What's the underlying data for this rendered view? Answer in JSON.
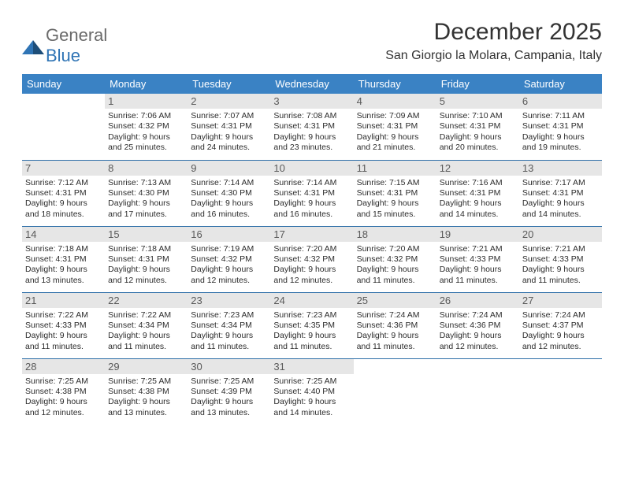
{
  "brand": {
    "word1": "General",
    "word2": "Blue"
  },
  "title": "December 2025",
  "location": "San Giorgio la Molara, Campania, Italy",
  "colors": {
    "header_bg": "#3a82c4",
    "header_text": "#ffffff",
    "daynum_bg": "#e6e6e6",
    "daynum_text": "#5a5a5a",
    "rule": "#2f6fa8",
    "body_text": "#2c2c2c",
    "logo_gray": "#6a6a6a",
    "logo_blue": "#2f74b5"
  },
  "layout": {
    "columns": 7,
    "rows": 5,
    "th_fontsize": 13,
    "daynum_fontsize": 13,
    "body_fontsize": 10.5,
    "title_fontsize": 30,
    "location_fontsize": 16
  },
  "dow": [
    "Sunday",
    "Monday",
    "Tuesday",
    "Wednesday",
    "Thursday",
    "Friday",
    "Saturday"
  ],
  "weeks": [
    [
      {
        "n": "",
        "sr": "",
        "ss": "",
        "dl": ""
      },
      {
        "n": "1",
        "sr": "Sunrise: 7:06 AM",
        "ss": "Sunset: 4:32 PM",
        "dl": "Daylight: 9 hours and 25 minutes."
      },
      {
        "n": "2",
        "sr": "Sunrise: 7:07 AM",
        "ss": "Sunset: 4:31 PM",
        "dl": "Daylight: 9 hours and 24 minutes."
      },
      {
        "n": "3",
        "sr": "Sunrise: 7:08 AM",
        "ss": "Sunset: 4:31 PM",
        "dl": "Daylight: 9 hours and 23 minutes."
      },
      {
        "n": "4",
        "sr": "Sunrise: 7:09 AM",
        "ss": "Sunset: 4:31 PM",
        "dl": "Daylight: 9 hours and 21 minutes."
      },
      {
        "n": "5",
        "sr": "Sunrise: 7:10 AM",
        "ss": "Sunset: 4:31 PM",
        "dl": "Daylight: 9 hours and 20 minutes."
      },
      {
        "n": "6",
        "sr": "Sunrise: 7:11 AM",
        "ss": "Sunset: 4:31 PM",
        "dl": "Daylight: 9 hours and 19 minutes."
      }
    ],
    [
      {
        "n": "7",
        "sr": "Sunrise: 7:12 AM",
        "ss": "Sunset: 4:31 PM",
        "dl": "Daylight: 9 hours and 18 minutes."
      },
      {
        "n": "8",
        "sr": "Sunrise: 7:13 AM",
        "ss": "Sunset: 4:30 PM",
        "dl": "Daylight: 9 hours and 17 minutes."
      },
      {
        "n": "9",
        "sr": "Sunrise: 7:14 AM",
        "ss": "Sunset: 4:30 PM",
        "dl": "Daylight: 9 hours and 16 minutes."
      },
      {
        "n": "10",
        "sr": "Sunrise: 7:14 AM",
        "ss": "Sunset: 4:31 PM",
        "dl": "Daylight: 9 hours and 16 minutes."
      },
      {
        "n": "11",
        "sr": "Sunrise: 7:15 AM",
        "ss": "Sunset: 4:31 PM",
        "dl": "Daylight: 9 hours and 15 minutes."
      },
      {
        "n": "12",
        "sr": "Sunrise: 7:16 AM",
        "ss": "Sunset: 4:31 PM",
        "dl": "Daylight: 9 hours and 14 minutes."
      },
      {
        "n": "13",
        "sr": "Sunrise: 7:17 AM",
        "ss": "Sunset: 4:31 PM",
        "dl": "Daylight: 9 hours and 14 minutes."
      }
    ],
    [
      {
        "n": "14",
        "sr": "Sunrise: 7:18 AM",
        "ss": "Sunset: 4:31 PM",
        "dl": "Daylight: 9 hours and 13 minutes."
      },
      {
        "n": "15",
        "sr": "Sunrise: 7:18 AM",
        "ss": "Sunset: 4:31 PM",
        "dl": "Daylight: 9 hours and 12 minutes."
      },
      {
        "n": "16",
        "sr": "Sunrise: 7:19 AM",
        "ss": "Sunset: 4:32 PM",
        "dl": "Daylight: 9 hours and 12 minutes."
      },
      {
        "n": "17",
        "sr": "Sunrise: 7:20 AM",
        "ss": "Sunset: 4:32 PM",
        "dl": "Daylight: 9 hours and 12 minutes."
      },
      {
        "n": "18",
        "sr": "Sunrise: 7:20 AM",
        "ss": "Sunset: 4:32 PM",
        "dl": "Daylight: 9 hours and 11 minutes."
      },
      {
        "n": "19",
        "sr": "Sunrise: 7:21 AM",
        "ss": "Sunset: 4:33 PM",
        "dl": "Daylight: 9 hours and 11 minutes."
      },
      {
        "n": "20",
        "sr": "Sunrise: 7:21 AM",
        "ss": "Sunset: 4:33 PM",
        "dl": "Daylight: 9 hours and 11 minutes."
      }
    ],
    [
      {
        "n": "21",
        "sr": "Sunrise: 7:22 AM",
        "ss": "Sunset: 4:33 PM",
        "dl": "Daylight: 9 hours and 11 minutes."
      },
      {
        "n": "22",
        "sr": "Sunrise: 7:22 AM",
        "ss": "Sunset: 4:34 PM",
        "dl": "Daylight: 9 hours and 11 minutes."
      },
      {
        "n": "23",
        "sr": "Sunrise: 7:23 AM",
        "ss": "Sunset: 4:34 PM",
        "dl": "Daylight: 9 hours and 11 minutes."
      },
      {
        "n": "24",
        "sr": "Sunrise: 7:23 AM",
        "ss": "Sunset: 4:35 PM",
        "dl": "Daylight: 9 hours and 11 minutes."
      },
      {
        "n": "25",
        "sr": "Sunrise: 7:24 AM",
        "ss": "Sunset: 4:36 PM",
        "dl": "Daylight: 9 hours and 11 minutes."
      },
      {
        "n": "26",
        "sr": "Sunrise: 7:24 AM",
        "ss": "Sunset: 4:36 PM",
        "dl": "Daylight: 9 hours and 12 minutes."
      },
      {
        "n": "27",
        "sr": "Sunrise: 7:24 AM",
        "ss": "Sunset: 4:37 PM",
        "dl": "Daylight: 9 hours and 12 minutes."
      }
    ],
    [
      {
        "n": "28",
        "sr": "Sunrise: 7:25 AM",
        "ss": "Sunset: 4:38 PM",
        "dl": "Daylight: 9 hours and 12 minutes."
      },
      {
        "n": "29",
        "sr": "Sunrise: 7:25 AM",
        "ss": "Sunset: 4:38 PM",
        "dl": "Daylight: 9 hours and 13 minutes."
      },
      {
        "n": "30",
        "sr": "Sunrise: 7:25 AM",
        "ss": "Sunset: 4:39 PM",
        "dl": "Daylight: 9 hours and 13 minutes."
      },
      {
        "n": "31",
        "sr": "Sunrise: 7:25 AM",
        "ss": "Sunset: 4:40 PM",
        "dl": "Daylight: 9 hours and 14 minutes."
      },
      {
        "n": "",
        "sr": "",
        "ss": "",
        "dl": ""
      },
      {
        "n": "",
        "sr": "",
        "ss": "",
        "dl": ""
      },
      {
        "n": "",
        "sr": "",
        "ss": "",
        "dl": ""
      }
    ]
  ]
}
